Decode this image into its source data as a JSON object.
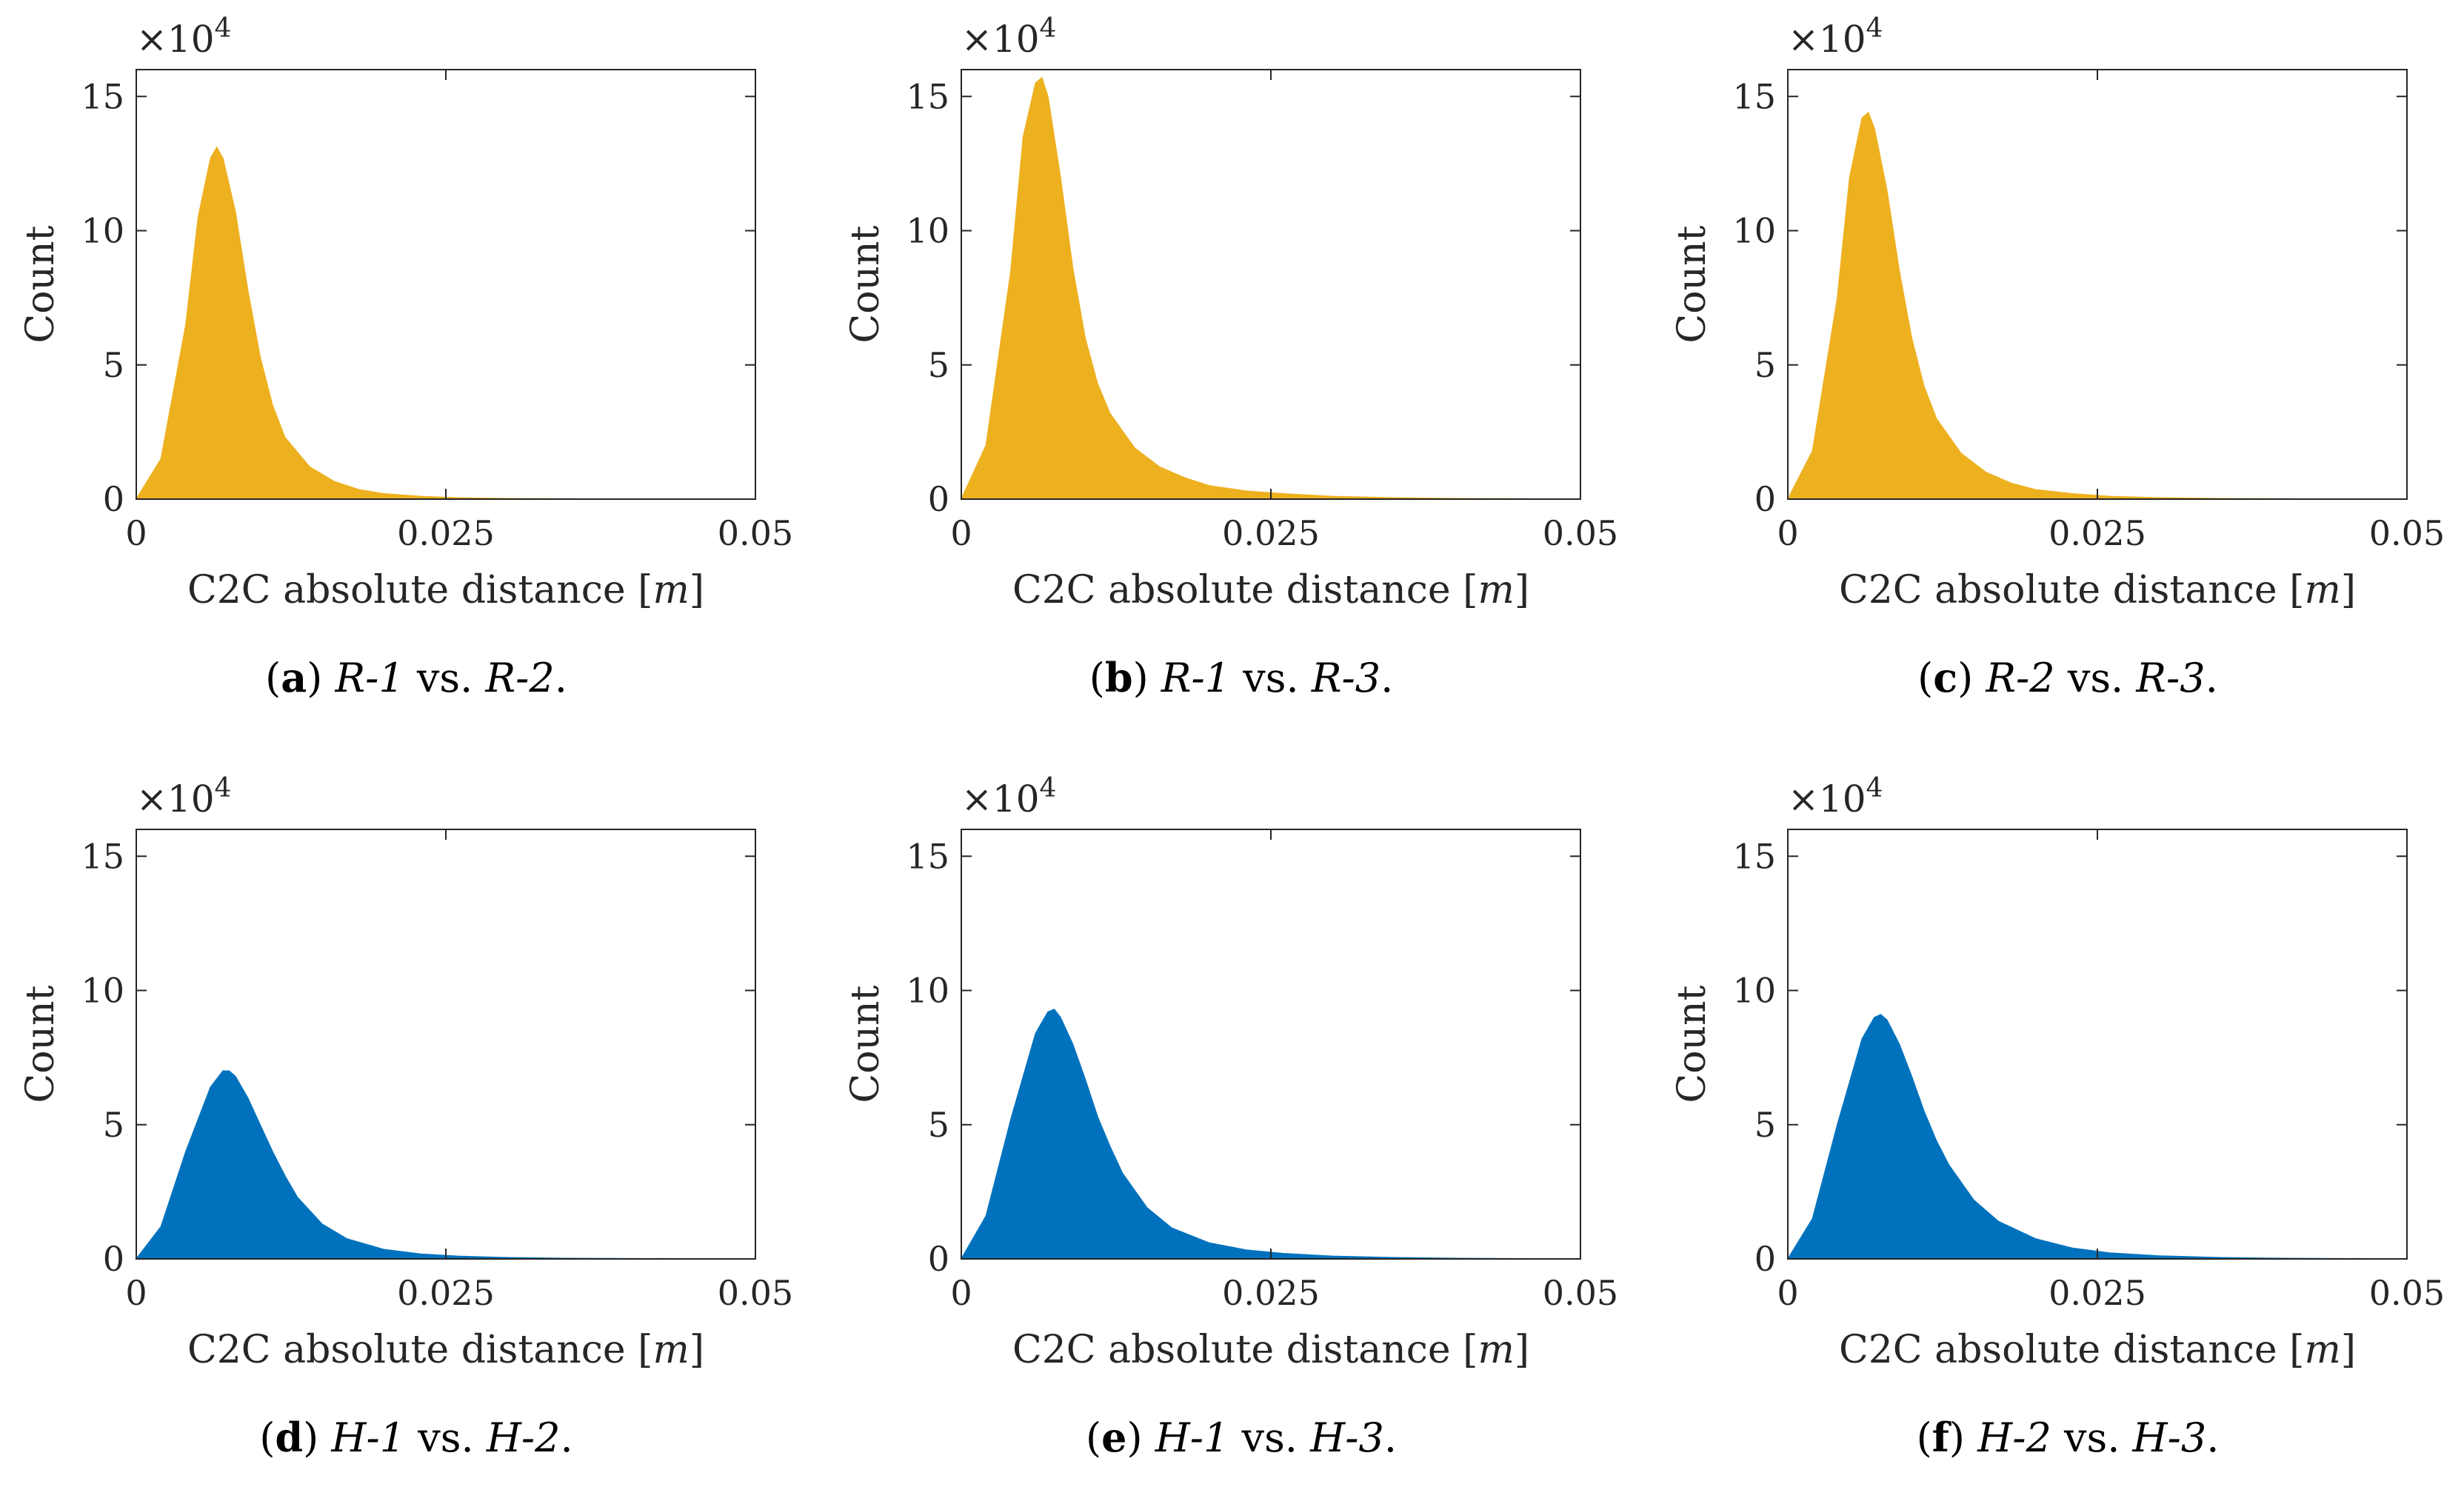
{
  "figure": {
    "axis_style": {
      "frame_color": "#262626",
      "xlabel_var": "m"
    }
  },
  "chart_data": [
    {
      "type": "area",
      "color": "#EDB120",
      "title": "",
      "xlabel": "C2C absolute distance [m]",
      "ylabel": "Count",
      "y_multiplier": "×10",
      "y_multiplier_exp": "4",
      "xlim": [
        0,
        0.05
      ],
      "ylim": [
        0,
        16
      ],
      "xticks": [
        "0",
        "0.025",
        "0.05"
      ],
      "yticks": [
        "0",
        "5",
        "10",
        "15"
      ],
      "x": [
        0,
        0.002,
        0.004,
        0.005,
        0.006,
        0.0065,
        0.007,
        0.008,
        0.009,
        0.01,
        0.011,
        0.012,
        0.014,
        0.016,
        0.018,
        0.02,
        0.023,
        0.026,
        0.03,
        0.035,
        0.04,
        0.045,
        0.05
      ],
      "y": [
        0,
        1.5,
        6.5,
        10.5,
        12.7,
        13.1,
        12.7,
        10.7,
        7.8,
        5.3,
        3.5,
        2.3,
        1.2,
        0.65,
        0.35,
        0.2,
        0.1,
        0.05,
        0.02,
        0.01,
        0,
        0,
        0
      ],
      "caption": {
        "letter": "(a)",
        "left": "R-1",
        "vs": "vs.",
        "right": "R-2",
        "end": "."
      }
    },
    {
      "type": "area",
      "color": "#EDB120",
      "title": "",
      "xlabel": "C2C absolute distance [m]",
      "ylabel": "Count",
      "y_multiplier": "×10",
      "y_multiplier_exp": "4",
      "xlim": [
        0,
        0.05
      ],
      "ylim": [
        0,
        16
      ],
      "xticks": [
        "0",
        "0.025",
        "0.05"
      ],
      "yticks": [
        "0",
        "5",
        "10",
        "15"
      ],
      "x": [
        0,
        0.002,
        0.004,
        0.005,
        0.006,
        0.0065,
        0.007,
        0.008,
        0.009,
        0.01,
        0.011,
        0.012,
        0.014,
        0.016,
        0.018,
        0.02,
        0.023,
        0.026,
        0.03,
        0.035,
        0.04,
        0.045,
        0.05
      ],
      "y": [
        0,
        2.0,
        8.5,
        13.5,
        15.5,
        15.7,
        15.0,
        12.0,
        8.6,
        6.0,
        4.3,
        3.2,
        1.9,
        1.2,
        0.8,
        0.5,
        0.3,
        0.2,
        0.1,
        0.05,
        0.02,
        0.01,
        0
      ],
      "caption": {
        "letter": "(b)",
        "left": "R-1",
        "vs": "vs.",
        "right": "R-3",
        "end": "."
      }
    },
    {
      "type": "area",
      "color": "#EDB120",
      "title": "",
      "xlabel": "C2C absolute distance [m]",
      "ylabel": "Count",
      "y_multiplier": "×10",
      "y_multiplier_exp": "4",
      "xlim": [
        0,
        0.05
      ],
      "ylim": [
        0,
        16
      ],
      "xticks": [
        "0",
        "0.025",
        "0.05"
      ],
      "yticks": [
        "0",
        "5",
        "10",
        "15"
      ],
      "x": [
        0,
        0.002,
        0.004,
        0.005,
        0.006,
        0.0065,
        0.007,
        0.008,
        0.009,
        0.01,
        0.011,
        0.012,
        0.014,
        0.016,
        0.018,
        0.02,
        0.023,
        0.026,
        0.03,
        0.035,
        0.04,
        0.045,
        0.05
      ],
      "y": [
        0,
        1.8,
        7.5,
        12.0,
        14.2,
        14.4,
        13.8,
        11.5,
        8.5,
        6.0,
        4.2,
        3.0,
        1.7,
        1.0,
        0.6,
        0.35,
        0.2,
        0.1,
        0.05,
        0.02,
        0.01,
        0,
        0
      ],
      "caption": {
        "letter": "(c)",
        "left": "R-2",
        "vs": "vs.",
        "right": "R-3",
        "end": "."
      }
    },
    {
      "type": "area",
      "color": "#0072BD",
      "title": "",
      "xlabel": "C2C absolute distance [m]",
      "ylabel": "Count",
      "y_multiplier": "×10",
      "y_multiplier_exp": "4",
      "xlim": [
        0,
        0.05
      ],
      "ylim": [
        0,
        16
      ],
      "xticks": [
        "0",
        "0.025",
        "0.05"
      ],
      "yticks": [
        "0",
        "5",
        "10",
        "15"
      ],
      "x": [
        0,
        0.002,
        0.004,
        0.006,
        0.007,
        0.0075,
        0.008,
        0.009,
        0.01,
        0.011,
        0.012,
        0.013,
        0.015,
        0.017,
        0.02,
        0.023,
        0.026,
        0.03,
        0.035,
        0.04,
        0.05
      ],
      "y": [
        0,
        1.2,
        4.0,
        6.4,
        7.0,
        7.0,
        6.8,
        6.0,
        5.0,
        4.0,
        3.1,
        2.3,
        1.3,
        0.75,
        0.35,
        0.18,
        0.1,
        0.05,
        0.02,
        0.01,
        0
      ],
      "caption": {
        "letter": "(d)",
        "left": "H-1",
        "vs": "vs.",
        "right": "H-2",
        "end": "."
      }
    },
    {
      "type": "area",
      "color": "#0072BD",
      "title": "",
      "xlabel": "C2C absolute distance [m]",
      "ylabel": "Count",
      "y_multiplier": "×10",
      "y_multiplier_exp": "4",
      "xlim": [
        0,
        0.05
      ],
      "ylim": [
        0,
        16
      ],
      "xticks": [
        "0",
        "0.025",
        "0.05"
      ],
      "yticks": [
        "0",
        "5",
        "10",
        "15"
      ],
      "x": [
        0,
        0.002,
        0.004,
        0.006,
        0.007,
        0.0075,
        0.008,
        0.009,
        0.01,
        0.011,
        0.012,
        0.013,
        0.015,
        0.017,
        0.02,
        0.023,
        0.026,
        0.03,
        0.035,
        0.04,
        0.05
      ],
      "y": [
        0,
        1.6,
        5.2,
        8.4,
        9.2,
        9.3,
        9.0,
        8.0,
        6.7,
        5.3,
        4.2,
        3.2,
        1.9,
        1.15,
        0.6,
        0.33,
        0.2,
        0.1,
        0.05,
        0.02,
        0
      ],
      "caption": {
        "letter": "(e)",
        "left": "H-1",
        "vs": "vs.",
        "right": "H-3",
        "end": "."
      }
    },
    {
      "type": "area",
      "color": "#0072BD",
      "title": "",
      "xlabel": "C2C absolute distance [m]",
      "ylabel": "Count",
      "y_multiplier": "×10",
      "y_multiplier_exp": "4",
      "xlim": [
        0,
        0.05
      ],
      "ylim": [
        0,
        16
      ],
      "xticks": [
        "0",
        "0.025",
        "0.05"
      ],
      "yticks": [
        "0",
        "5",
        "10",
        "15"
      ],
      "x": [
        0,
        0.002,
        0.004,
        0.006,
        0.007,
        0.0075,
        0.008,
        0.009,
        0.01,
        0.011,
        0.012,
        0.013,
        0.015,
        0.017,
        0.02,
        0.023,
        0.026,
        0.03,
        0.035,
        0.04,
        0.05
      ],
      "y": [
        0,
        1.5,
        5.0,
        8.2,
        9.0,
        9.1,
        8.9,
        8.0,
        6.8,
        5.5,
        4.4,
        3.5,
        2.2,
        1.4,
        0.75,
        0.4,
        0.22,
        0.11,
        0.05,
        0.02,
        0
      ],
      "caption": {
        "letter": "(f)",
        "left": "H-2",
        "vs": "vs.",
        "right": "H-3",
        "end": "."
      }
    }
  ]
}
